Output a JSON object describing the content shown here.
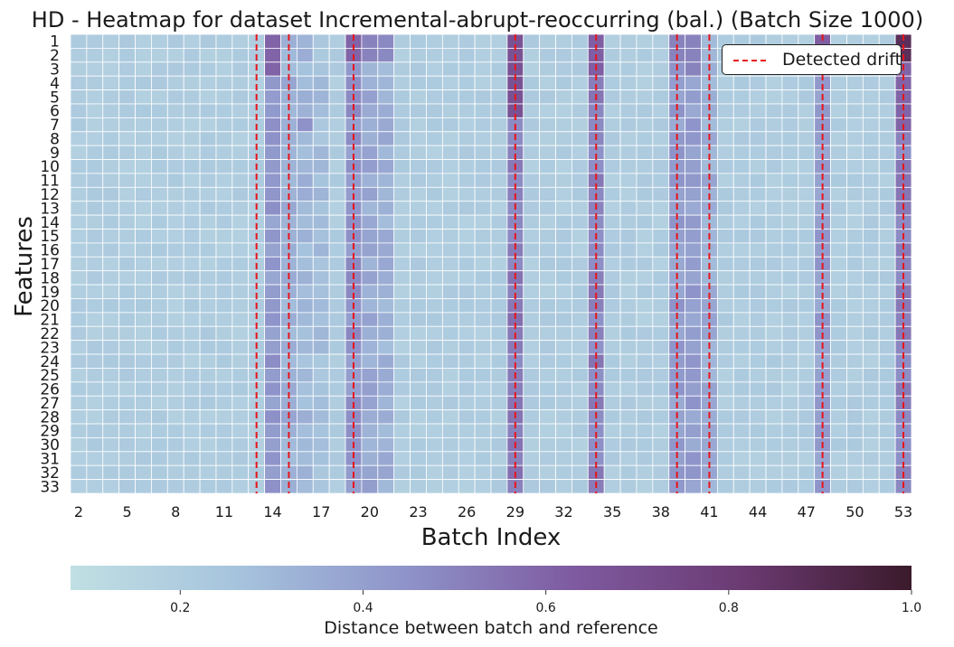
{
  "chart_data": {
    "type": "heatmap",
    "title": "HD - Heatmap for dataset Incremental-abrupt-reoccurring (bal.) (Batch Size 1000)",
    "xlabel": "Batch Index",
    "ylabel": "Features",
    "x": [
      2,
      3,
      4,
      5,
      6,
      7,
      8,
      9,
      10,
      11,
      12,
      13,
      14,
      15,
      16,
      17,
      18,
      19,
      20,
      21,
      22,
      23,
      24,
      25,
      26,
      27,
      28,
      29,
      30,
      31,
      32,
      33,
      34,
      35,
      36,
      37,
      38,
      39,
      40,
      41,
      42,
      43,
      44,
      45,
      46,
      47,
      48,
      49,
      50,
      51,
      52,
      53
    ],
    "x_tick_labels": [
      "2",
      "5",
      "8",
      "11",
      "14",
      "17",
      "20",
      "23",
      "26",
      "29",
      "32",
      "35",
      "38",
      "41",
      "44",
      "47",
      "50",
      "53"
    ],
    "y": [
      "1",
      "2",
      "3",
      "4",
      "5",
      "6",
      "7",
      "8",
      "9",
      "10",
      "11",
      "12",
      "13",
      "14",
      "15",
      "16",
      "17",
      "18",
      "19",
      "20",
      "21",
      "22",
      "23",
      "24",
      "25",
      "26",
      "27",
      "28",
      "29",
      "30",
      "31",
      "32",
      "33"
    ],
    "base_value": 0.2,
    "column_levels": {
      "14": 0.42,
      "15": 0.33,
      "16": 0.3,
      "17": 0.27,
      "19": 0.44,
      "20": 0.36,
      "21": 0.33,
      "29": 0.52,
      "34": 0.5,
      "39": 0.4,
      "40": 0.4,
      "41": 0.34,
      "48": 0.4,
      "53": 0.5
    },
    "peak_cells": [
      {
        "x": 14,
        "rows": [
          1,
          2,
          3
        ],
        "value": 0.6
      },
      {
        "x": 19,
        "rows": [
          1,
          2
        ],
        "value": 0.6
      },
      {
        "x": 20,
        "rows": [
          1,
          2
        ],
        "value": 0.5
      },
      {
        "x": 21,
        "rows": [
          1,
          2
        ],
        "value": 0.48
      },
      {
        "x": 29,
        "rows": [
          1,
          2,
          3,
          4,
          5,
          6
        ],
        "value": 0.68
      },
      {
        "x": 34,
        "rows": [
          1,
          2,
          3
        ],
        "value": 0.62
      },
      {
        "x": 39,
        "rows": [
          1,
          2
        ],
        "value": 0.5
      },
      {
        "x": 40,
        "rows": [
          1,
          2,
          3
        ],
        "value": 0.5
      },
      {
        "x": 48,
        "rows": [
          1,
          2
        ],
        "value": 0.62
      },
      {
        "x": 53,
        "rows": [
          1,
          2
        ],
        "value": 0.88
      },
      {
        "x": 53,
        "rows": [
          3,
          4,
          5,
          6,
          7
        ],
        "value": 0.6
      },
      {
        "x": 16,
        "rows": [
          7
        ],
        "value": 0.45
      }
    ],
    "vmin": 0.08,
    "vmax": 1.0,
    "colormap": [
      "#c0dfe3",
      "#a6c3dd",
      "#8e93c9",
      "#7e5aa0",
      "#6b3a72",
      "#3b1a2b"
    ],
    "detected_drift": [
      13.5,
      15.5,
      19.5,
      29.5,
      34.5,
      39.5,
      41.5,
      48.5,
      53.5
    ],
    "drift_color": "#e8141a",
    "legend": {
      "label": "Detected drift",
      "placement": "top-right"
    },
    "colorbar": {
      "label": "Distance between batch and reference",
      "ticks": [
        0.2,
        0.4,
        0.6,
        0.8,
        1.0
      ],
      "tick_labels": [
        "0.2",
        "0.4",
        "0.6",
        "0.8",
        "1.0"
      ],
      "orientation": "horizontal"
    }
  }
}
